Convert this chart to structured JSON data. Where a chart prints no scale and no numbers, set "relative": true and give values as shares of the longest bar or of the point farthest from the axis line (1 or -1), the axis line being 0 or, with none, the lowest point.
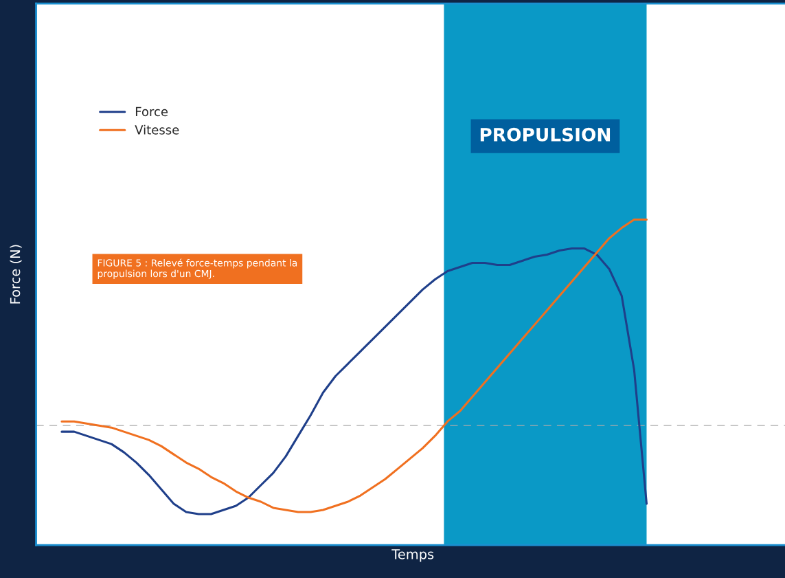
{
  "chart_data": {
    "type": "line",
    "relative": true,
    "xlabel": "Temps",
    "ylabel": "Force (N)",
    "categories": [
      null,
      null,
      null,
      null,
      null,
      null,
      null,
      null,
      null,
      null,
      null,
      null,
      null,
      null,
      null,
      null,
      null,
      null,
      null,
      null,
      null,
      null,
      null,
      null,
      null,
      null,
      null,
      null,
      null,
      null,
      null,
      null,
      null,
      null,
      null,
      null,
      null,
      null,
      null,
      null,
      null,
      null,
      null,
      null,
      null,
      null,
      null,
      null
    ],
    "series": [
      {
        "name": "Force",
        "color": "#1f3f8a",
        "values": [
          -0.03,
          -0.03,
          -0.05,
          -0.07,
          -0.09,
          -0.13,
          -0.18,
          -0.24,
          -0.31,
          -0.38,
          -0.42,
          -0.43,
          -0.43,
          -0.41,
          -0.39,
          -0.35,
          -0.29,
          -0.23,
          -0.15,
          -0.05,
          0.05,
          0.16,
          0.24,
          0.3,
          0.36,
          0.42,
          0.48,
          0.54,
          0.6,
          0.66,
          0.71,
          0.75,
          0.77,
          0.79,
          0.79,
          0.78,
          0.78,
          0.8,
          0.82,
          0.83,
          0.85,
          0.86,
          0.86,
          0.83,
          0.76,
          0.63,
          0.27,
          -0.38
        ]
      },
      {
        "name": "Vitesse",
        "color": "#f07020",
        "values": [
          0.02,
          0.02,
          0.01,
          0,
          -0.01,
          -0.03,
          -0.05,
          -0.07,
          -0.1,
          -0.14,
          -0.18,
          -0.21,
          -0.25,
          -0.28,
          -0.32,
          -0.35,
          -0.37,
          -0.4,
          -0.41,
          -0.42,
          -0.42,
          -0.41,
          -0.39,
          -0.37,
          -0.34,
          -0.3,
          -0.26,
          -0.21,
          -0.16,
          -0.11,
          -0.05,
          0.02,
          0.07,
          0.14,
          0.21,
          0.28,
          0.35,
          0.42,
          0.49,
          0.56,
          0.63,
          0.7,
          0.77,
          0.84,
          0.91,
          0.96,
          1.0,
          1.0
        ]
      }
    ],
    "ref_lines": [
      {
        "axis": "y",
        "value": 0,
        "color": "#aaaaaa",
        "line_style": "dashed"
      }
    ],
    "annotations": [
      "FIGURE 5 : Relevé force-temps pendant la propulsion lors d'un CMJ.",
      "PROPULSION"
    ],
    "legend": "top left"
  }
}
